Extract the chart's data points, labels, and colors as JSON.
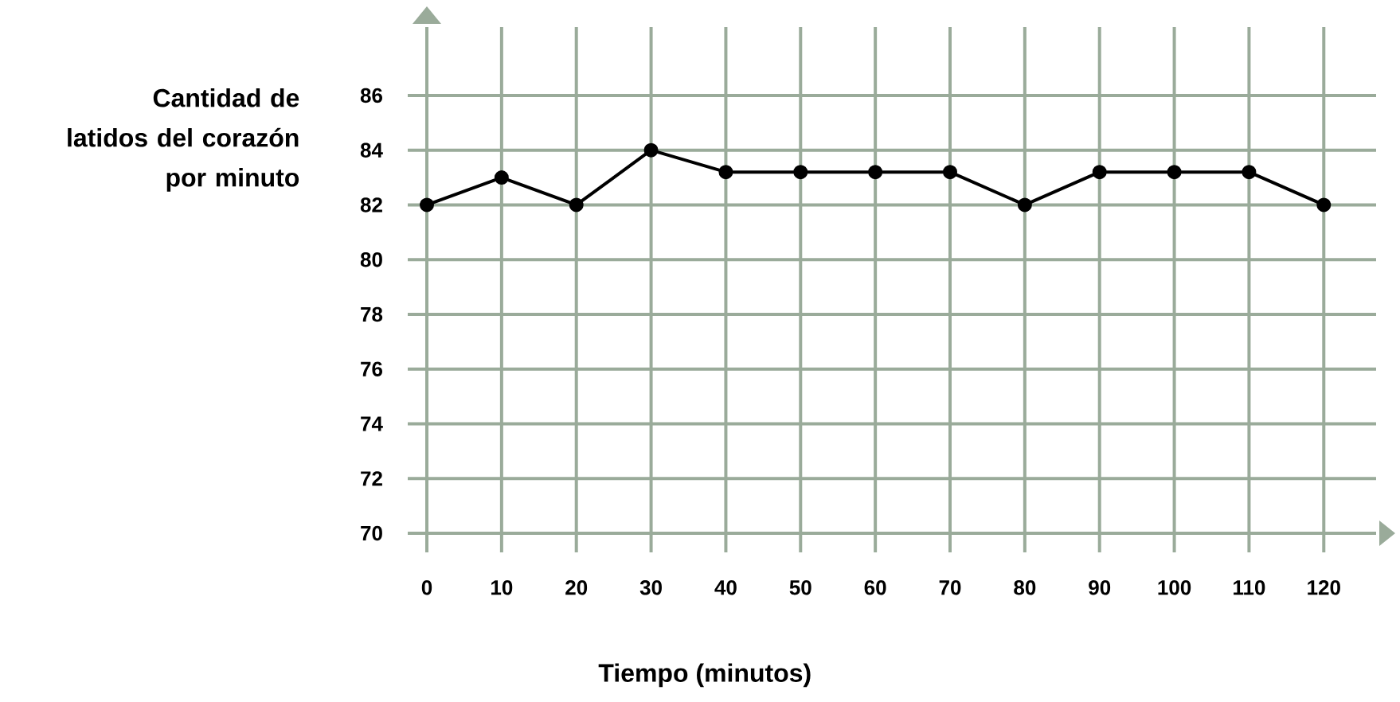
{
  "chart_data": {
    "type": "line",
    "xlabel": "Tiempo (minutos)",
    "ylabel": "Cantidad de latidos del corazón por minuto",
    "x": [
      0,
      10,
      20,
      30,
      40,
      50,
      60,
      70,
      80,
      90,
      100,
      110,
      120
    ],
    "values": [
      82,
      83,
      82,
      84,
      83.2,
      83.2,
      83.2,
      83.2,
      82,
      83.2,
      83.2,
      83.2,
      82
    ],
    "color": "#000000",
    "marker": "circle",
    "line_style": "solid",
    "grid": true,
    "xlim": [
      0,
      127
    ],
    "xticks": [
      0,
      10,
      20,
      30,
      40,
      50,
      60,
      70,
      80,
      90,
      100,
      110,
      120
    ],
    "ylim": [
      70,
      88.5
    ],
    "yticks": [
      70,
      72,
      74,
      76,
      78,
      80,
      82,
      84,
      86
    ]
  }
}
